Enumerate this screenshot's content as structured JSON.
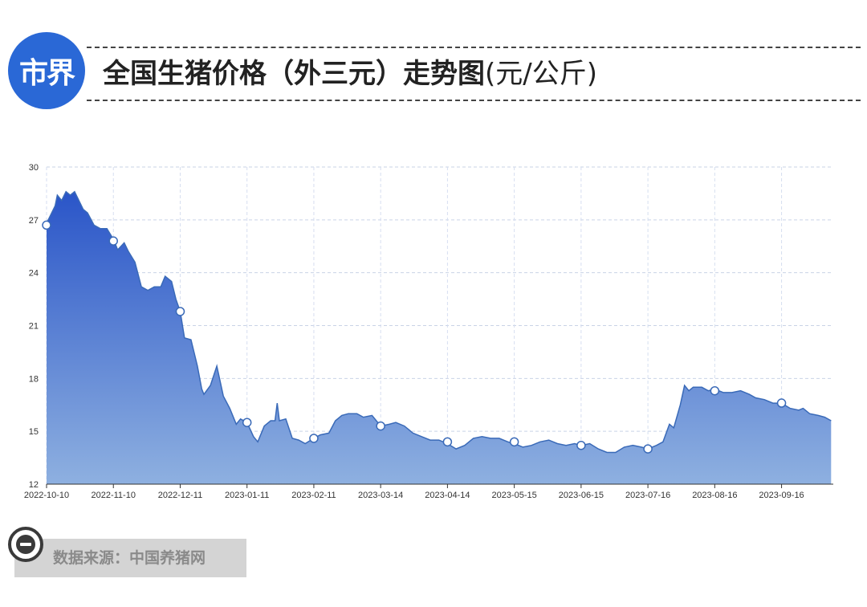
{
  "header": {
    "logo_text": "市界",
    "title": "全国生猪价格（外三元）走势图",
    "title_unit": "(元/公斤)"
  },
  "source": {
    "text": "数据来源：中国养猪网"
  },
  "colors": {
    "logo": "#2a68d6",
    "area_top": "#2a55c8",
    "area_bottom": "#8eb0e0",
    "line": "#3a6ab8"
  },
  "icons": [
    "minus-circle-icon"
  ],
  "chart_data": {
    "type": "area",
    "title": "全国生猪价格（外三元）走势图(元/公斤)",
    "xlabel": "",
    "ylabel": "",
    "ylim": [
      12,
      30
    ],
    "yticks": [
      12,
      15,
      18,
      21,
      24,
      27,
      30
    ],
    "xlim": [
      "2022-10-10",
      "2023-10-10"
    ],
    "xticks": [
      "2022-10-10",
      "2022-11-10",
      "2022-12-11",
      "2023-01-11",
      "2023-02-11",
      "2023-03-14",
      "2023-04-14",
      "2023-05-15",
      "2023-06-15",
      "2023-07-16",
      "2023-08-16",
      "2023-09-16"
    ],
    "grid": true,
    "legend": "none",
    "series": [
      {
        "values": [
          [
            "2022-10-10",
            26.8
          ],
          [
            "2022-10-14",
            27.8
          ],
          [
            "2022-10-15",
            28.4
          ],
          [
            "2022-10-17",
            28.1
          ],
          [
            "2022-10-19",
            28.6
          ],
          [
            "2022-10-21",
            28.4
          ],
          [
            "2022-10-23",
            28.6
          ],
          [
            "2022-10-27",
            27.6
          ],
          [
            "2022-10-29",
            27.4
          ],
          [
            "2022-11-01",
            26.7
          ],
          [
            "2022-11-04",
            26.5
          ],
          [
            "2022-11-07",
            26.5
          ],
          [
            "2022-11-10",
            25.9
          ],
          [
            "2022-11-12",
            25.3
          ],
          [
            "2022-11-15",
            25.7
          ],
          [
            "2022-11-17",
            25.2
          ],
          [
            "2022-11-20",
            24.6
          ],
          [
            "2022-11-23",
            23.2
          ],
          [
            "2022-11-26",
            23.0
          ],
          [
            "2022-11-29",
            23.2
          ],
          [
            "2022-12-02",
            23.2
          ],
          [
            "2022-12-04",
            23.8
          ],
          [
            "2022-12-07",
            23.5
          ],
          [
            "2022-12-09",
            22.5
          ],
          [
            "2022-12-11",
            21.8
          ],
          [
            "2022-12-13",
            20.3
          ],
          [
            "2022-12-16",
            20.2
          ],
          [
            "2022-12-19",
            18.7
          ],
          [
            "2022-12-21",
            17.4
          ],
          [
            "2022-12-22",
            17.1
          ],
          [
            "2022-12-25",
            17.6
          ],
          [
            "2022-12-28",
            18.7
          ],
          [
            "2022-12-31",
            17.0
          ],
          [
            "2023-01-03",
            16.3
          ],
          [
            "2023-01-06",
            15.4
          ],
          [
            "2023-01-08",
            15.7
          ],
          [
            "2023-01-11",
            15.5
          ],
          [
            "2023-01-14",
            14.7
          ],
          [
            "2023-01-16",
            14.4
          ],
          [
            "2023-01-19",
            15.3
          ],
          [
            "2023-01-22",
            15.6
          ],
          [
            "2023-01-24",
            15.6
          ],
          [
            "2023-01-25",
            16.6
          ],
          [
            "2023-01-26",
            15.6
          ],
          [
            "2023-01-29",
            15.7
          ],
          [
            "2023-02-01",
            14.6
          ],
          [
            "2023-02-04",
            14.5
          ],
          [
            "2023-02-07",
            14.3
          ],
          [
            "2023-02-11",
            14.6
          ],
          [
            "2023-02-14",
            14.8
          ],
          [
            "2023-02-18",
            14.9
          ],
          [
            "2023-02-21",
            15.6
          ],
          [
            "2023-02-24",
            15.9
          ],
          [
            "2023-02-27",
            16.0
          ],
          [
            "2023-03-03",
            16.0
          ],
          [
            "2023-03-06",
            15.8
          ],
          [
            "2023-03-10",
            15.9
          ],
          [
            "2023-03-14",
            15.3
          ],
          [
            "2023-03-18",
            15.4
          ],
          [
            "2023-03-21",
            15.5
          ],
          [
            "2023-03-25",
            15.3
          ],
          [
            "2023-03-29",
            14.9
          ],
          [
            "2023-04-02",
            14.7
          ],
          [
            "2023-04-06",
            14.5
          ],
          [
            "2023-04-10",
            14.5
          ],
          [
            "2023-04-14",
            14.3
          ],
          [
            "2023-04-18",
            14.0
          ],
          [
            "2023-04-22",
            14.2
          ],
          [
            "2023-04-26",
            14.6
          ],
          [
            "2023-04-30",
            14.7
          ],
          [
            "2023-05-04",
            14.6
          ],
          [
            "2023-05-08",
            14.6
          ],
          [
            "2023-05-12",
            14.4
          ],
          [
            "2023-05-15",
            14.3
          ],
          [
            "2023-05-19",
            14.1
          ],
          [
            "2023-05-23",
            14.2
          ],
          [
            "2023-05-27",
            14.4
          ],
          [
            "2023-05-31",
            14.5
          ],
          [
            "2023-06-04",
            14.3
          ],
          [
            "2023-06-08",
            14.2
          ],
          [
            "2023-06-12",
            14.3
          ],
          [
            "2023-06-15",
            14.2
          ],
          [
            "2023-06-19",
            14.3
          ],
          [
            "2023-06-23",
            14.0
          ],
          [
            "2023-06-27",
            13.8
          ],
          [
            "2023-07-01",
            13.8
          ],
          [
            "2023-07-05",
            14.1
          ],
          [
            "2023-07-09",
            14.2
          ],
          [
            "2023-07-13",
            14.1
          ],
          [
            "2023-07-16",
            14.0
          ],
          [
            "2023-07-20",
            14.2
          ],
          [
            "2023-07-23",
            14.4
          ],
          [
            "2023-07-26",
            15.4
          ],
          [
            "2023-07-28",
            15.2
          ],
          [
            "2023-07-31",
            16.5
          ],
          [
            "2023-08-02",
            17.6
          ],
          [
            "2023-08-04",
            17.3
          ],
          [
            "2023-08-06",
            17.5
          ],
          [
            "2023-08-10",
            17.5
          ],
          [
            "2023-08-13",
            17.3
          ],
          [
            "2023-08-16",
            17.4
          ],
          [
            "2023-08-20",
            17.2
          ],
          [
            "2023-08-24",
            17.2
          ],
          [
            "2023-08-28",
            17.3
          ],
          [
            "2023-09-01",
            17.1
          ],
          [
            "2023-09-04",
            16.9
          ],
          [
            "2023-09-08",
            16.8
          ],
          [
            "2023-09-12",
            16.6
          ],
          [
            "2023-09-16",
            16.6
          ],
          [
            "2023-09-20",
            16.3
          ],
          [
            "2023-09-24",
            16.2
          ],
          [
            "2023-09-26",
            16.3
          ],
          [
            "2023-09-29",
            16.0
          ],
          [
            "2023-10-03",
            15.9
          ],
          [
            "2023-10-06",
            15.8
          ],
          [
            "2023-10-09",
            15.6
          ]
        ]
      }
    ],
    "markers": [
      [
        "2022-10-10",
        26.7
      ],
      [
        "2022-11-10",
        25.8
      ],
      [
        "2022-12-11",
        21.8
      ],
      [
        "2023-01-11",
        15.5
      ],
      [
        "2023-02-11",
        14.6
      ],
      [
        "2023-03-14",
        15.3
      ],
      [
        "2023-04-14",
        14.4
      ],
      [
        "2023-05-15",
        14.4
      ],
      [
        "2023-06-15",
        14.2
      ],
      [
        "2023-07-16",
        14.0
      ],
      [
        "2023-08-16",
        17.3
      ],
      [
        "2023-09-16",
        16.6
      ]
    ]
  }
}
